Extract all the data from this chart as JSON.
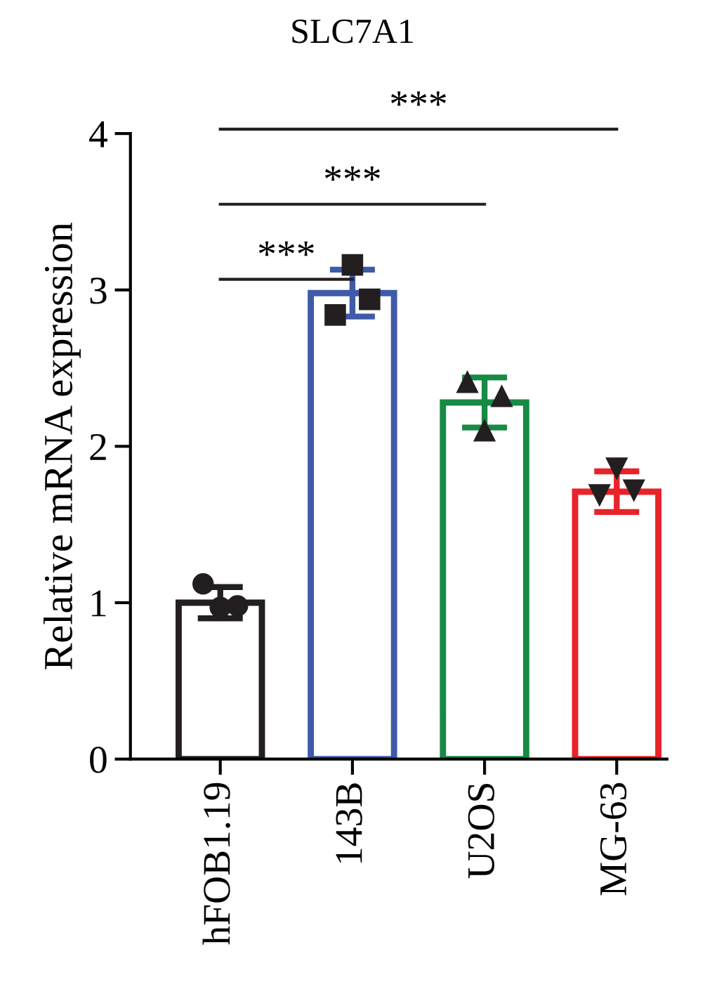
{
  "chart_data": {
    "type": "bar",
    "title": "SLC7A1",
    "ylabel": "Relative mRNA expression",
    "categories": [
      "hFOB1.19",
      "143B",
      "U2OS",
      "MG-63"
    ],
    "values": [
      1.0,
      2.98,
      2.28,
      1.71
    ],
    "colors": [
      "#231f20",
      "#3f5aa8",
      "#178a44",
      "#e8232a"
    ],
    "errors": [
      0.1,
      0.15,
      0.16,
      0.13
    ],
    "ylim": [
      0,
      4
    ],
    "yticks": [
      0,
      1,
      2,
      3,
      4
    ],
    "grid": false,
    "legend": false,
    "series": [
      {
        "type": "scatter",
        "marker": "circle",
        "color": "#231f20",
        "x": [
          "hFOB1.19",
          "hFOB1.19",
          "hFOB1.19"
        ],
        "values": [
          1.12,
          0.97,
          0.98
        ]
      },
      {
        "type": "scatter",
        "marker": "square",
        "color": "#231f20",
        "x": [
          "143B",
          "143B",
          "143B"
        ],
        "values": [
          2.84,
          3.16,
          2.94
        ]
      },
      {
        "type": "scatter",
        "marker": "triangle",
        "color": "#231f20",
        "x": [
          "U2OS",
          "U2OS",
          "U2OS"
        ],
        "values": [
          2.41,
          2.1,
          2.32
        ]
      },
      {
        "type": "scatter",
        "marker": "triangle_down",
        "color": "#231f20",
        "x": [
          "MG-63",
          "MG-63",
          "MG-63"
        ],
        "values": [
          1.69,
          1.86,
          1.72
        ]
      }
    ],
    "annotations": [
      "***",
      "***",
      "***"
    ]
  }
}
